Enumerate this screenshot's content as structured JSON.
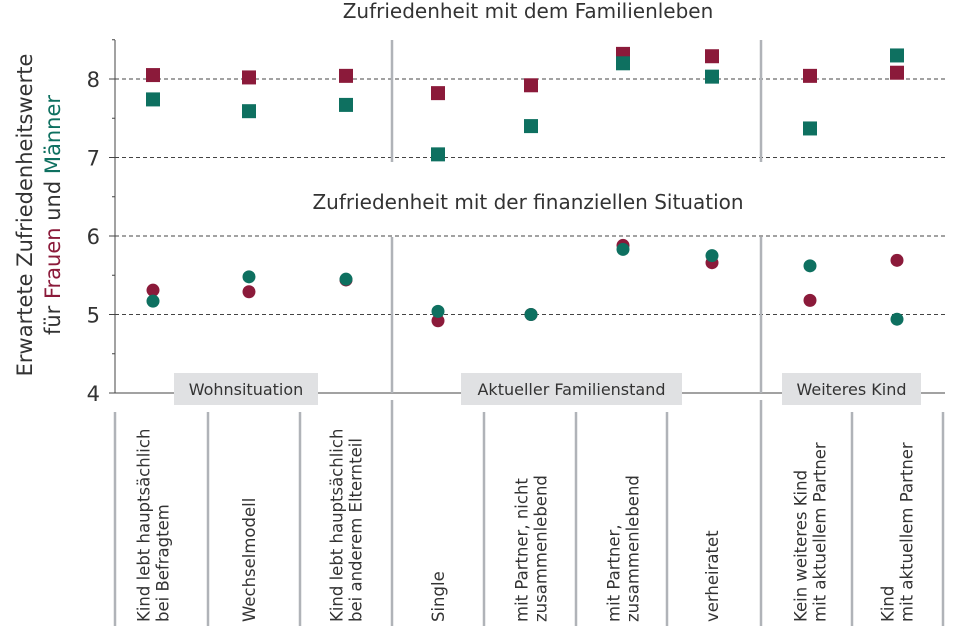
{
  "chart_data": {
    "type": "scatter",
    "ylabel_line1": "Erwartete Zufriedenheitswerte",
    "ylabel_line2_prefix": "für ",
    "ylabel_women": "Frauen",
    "ylabel_and": " und ",
    "ylabel_men": "Männer",
    "panel_titles": {
      "family": "Zufriedenheit mit dem Familienleben",
      "financial": "Zufriedenheit mit der finanziellen Situation"
    },
    "y_ticks": [
      "4",
      "5",
      "6",
      "7",
      "8"
    ],
    "groups": [
      "Wohnsituation",
      "Aktueller Familienstand",
      "Weiteres Kind"
    ],
    "categories": [
      [
        "Kind lebt hauptsächlich",
        "bei Befragtem"
      ],
      [
        "Wechselmodell"
      ],
      [
        "Kind lebt hauptsächlich",
        "bei anderem Elternteil"
      ],
      [
        "Single"
      ],
      [
        "mit Partner, nicht",
        "zusammenlebend"
      ],
      [
        "mit Partner,",
        "zusammenlebend"
      ],
      [
        "verheiratet"
      ],
      [
        "Kein weiteres Kind",
        "mit aktuellem Partner"
      ],
      [
        "Kind",
        "mit aktuellem Partner"
      ]
    ],
    "series": [
      {
        "name": "Frauen",
        "panel": "family",
        "marker": "square",
        "color": "#8b1a3a",
        "values": [
          8.05,
          8.02,
          8.04,
          7.82,
          7.92,
          8.32,
          8.29,
          8.04,
          8.08
        ]
      },
      {
        "name": "Männer",
        "panel": "family",
        "marker": "square",
        "color": "#0e7060",
        "values": [
          7.74,
          7.59,
          7.67,
          7.04,
          7.4,
          8.2,
          8.03,
          7.37,
          8.3
        ]
      },
      {
        "name": "Frauen",
        "panel": "financial",
        "marker": "circle",
        "color": "#8b1a3a",
        "values": [
          5.31,
          5.29,
          5.44,
          4.92,
          5.0,
          5.88,
          5.66,
          5.18,
          5.69
        ]
      },
      {
        "name": "Männer",
        "panel": "financial",
        "marker": "circle",
        "color": "#0e7060",
        "values": [
          5.17,
          5.48,
          5.45,
          5.04,
          5.0,
          5.83,
          5.75,
          5.62,
          4.94
        ]
      }
    ],
    "ylim": [
      4,
      8.5
    ],
    "grid_y": [
      5,
      6,
      7,
      8
    ]
  }
}
